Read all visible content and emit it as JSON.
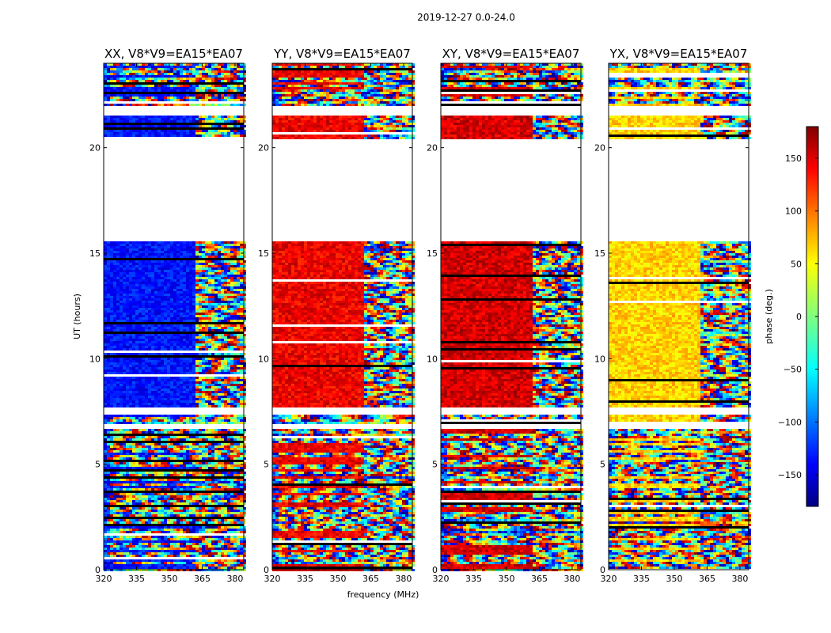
{
  "chart_data": {
    "type": "heatmap",
    "title": "2019-12-27 0.0-24.0",
    "xlabel": "frequency (MHz)",
    "ylabel": "UT (hours)",
    "xlim": [
      320,
      384
    ],
    "ylim": [
      0,
      24
    ],
    "x_ticks": [
      "320",
      "335",
      "350",
      "365",
      "380"
    ],
    "x_tick_values": [
      320,
      335,
      350,
      365,
      380
    ],
    "y_ticks": [
      "0",
      "5",
      "10",
      "15",
      "20"
    ],
    "y_tick_values": [
      0,
      5,
      10,
      15,
      20
    ],
    "colorbar": {
      "label": "phase (deg.)",
      "range": [
        -180,
        180
      ],
      "ticks": [
        "150",
        "100",
        "50",
        "0",
        "−50",
        "−100",
        "−150"
      ],
      "tick_values": [
        150,
        100,
        50,
        0,
        -50,
        -100,
        -150
      ],
      "colormap": "jet"
    },
    "gaps_ut": [
      [
        15.65,
        20.5
      ],
      [
        21.6,
        22.0
      ],
      [
        7.4,
        7.7
      ],
      [
        6.7,
        6.9
      ]
    ],
    "panels": [
      {
        "title": "XX, V8*V9=EA15*EA07",
        "base_phase": -130,
        "coherent_max_mhz": 361
      },
      {
        "title": "YY, V8*V9=EA15*EA07",
        "base_phase": 140,
        "coherent_max_mhz": 361
      },
      {
        "title": "XY, V8*V9=EA15*EA07",
        "base_phase": 150,
        "coherent_max_mhz": 361
      },
      {
        "title": "YX, V8*V9=EA15*EA07",
        "base_phase": 60,
        "coherent_max_mhz": 361
      }
    ]
  }
}
